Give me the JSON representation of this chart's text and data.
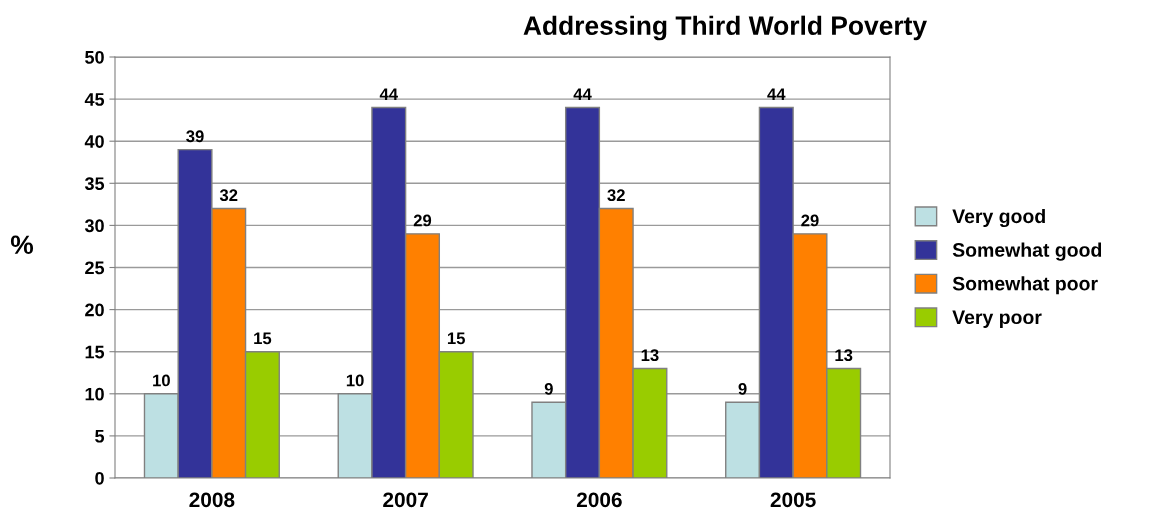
{
  "chart_data": {
    "type": "bar",
    "title": "Addressing Third World Poverty",
    "ylabel": "%",
    "categories": [
      "2008",
      "2007",
      "2006",
      "2005"
    ],
    "series": [
      {
        "name": "Very good",
        "color": "#bde0e3",
        "values": [
          10,
          10,
          9,
          9
        ]
      },
      {
        "name": "Somewhat good",
        "color": "#333399",
        "values": [
          39,
          44,
          44,
          44
        ]
      },
      {
        "name": "Somewhat poor",
        "color": "#ff8000",
        "values": [
          32,
          29,
          32,
          29
        ]
      },
      {
        "name": "Very poor",
        "color": "#99cc00",
        "values": [
          15,
          15,
          13,
          13
        ]
      }
    ],
    "ylim": [
      0,
      50
    ],
    "yticks": [
      0,
      5,
      10,
      15,
      20,
      25,
      30,
      35,
      40,
      45,
      50
    ],
    "grid": "y",
    "legend": "right",
    "data_labels": true
  }
}
